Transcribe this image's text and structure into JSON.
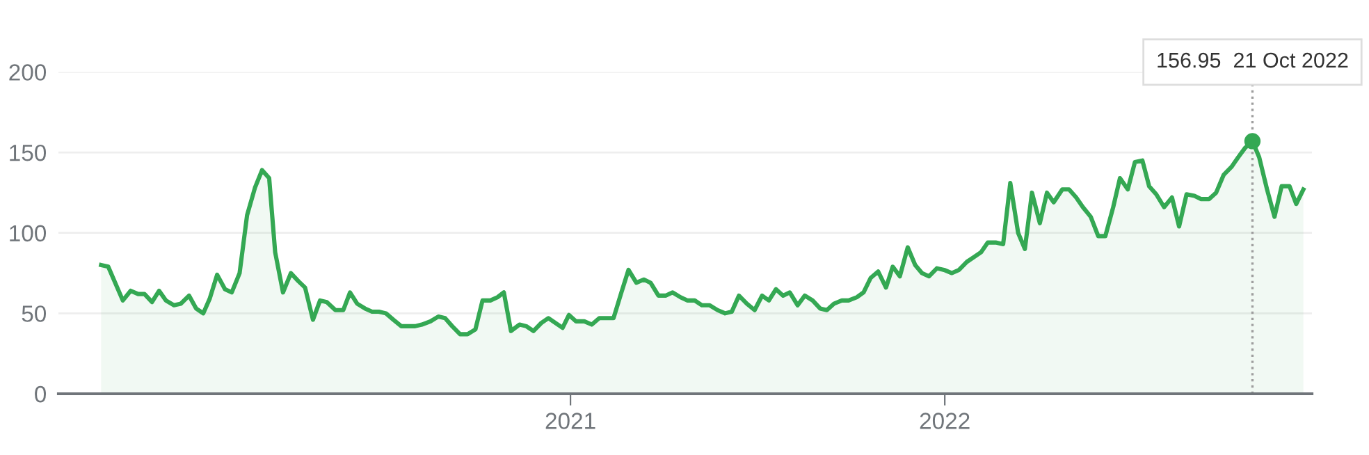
{
  "chart_data": {
    "type": "area",
    "xlim": [
      2019.632,
      2022.981
    ],
    "xticks": [
      2021,
      2022
    ],
    "ylim": [
      0,
      200
    ],
    "yticks": [
      0,
      50,
      100,
      150,
      200
    ],
    "grid": "y",
    "legend": false,
    "ref_lines": [
      {
        "axis": "x",
        "value": 2022.822,
        "line_style": "dotted",
        "color": "#9e9e9e"
      }
    ],
    "annotations": [
      "156.95  21 Oct 2022"
    ],
    "series": [
      {
        "color": "#34a853",
        "x": [
          2019.746,
          2019.765,
          2019.804,
          2019.825,
          2019.845,
          2019.862,
          2019.882,
          2019.901,
          2019.919,
          2019.941,
          2019.959,
          2019.981,
          2020.0,
          2020.019,
          2020.036,
          2020.056,
          2020.077,
          2020.095,
          2020.116,
          2020.136,
          2020.157,
          2020.176,
          2020.195,
          2020.211,
          2020.232,
          2020.253,
          2020.273,
          2020.291,
          2020.312,
          2020.331,
          2020.349,
          2020.372,
          2020.393,
          2020.411,
          2020.43,
          2020.451,
          2020.47,
          2020.488,
          2020.507,
          2020.527,
          2020.548,
          2020.566,
          2020.585,
          2020.603,
          2020.626,
          2020.647,
          2020.665,
          2020.684,
          2020.705,
          2020.725,
          2020.746,
          2020.765,
          2020.786,
          2020.805,
          2020.822,
          2020.841,
          2020.864,
          2020.882,
          2020.901,
          2020.922,
          2020.941,
          2020.96,
          2020.979,
          2020.996,
          2021.015,
          2021.037,
          2021.057,
          2021.077,
          2021.097,
          2021.115,
          2021.136,
          2021.155,
          2021.176,
          2021.196,
          2021.214,
          2021.235,
          2021.254,
          2021.273,
          2021.294,
          2021.312,
          2021.332,
          2021.351,
          2021.372,
          2021.393,
          2021.413,
          2021.431,
          2021.45,
          2021.471,
          2021.492,
          2021.512,
          2021.53,
          2021.549,
          2021.568,
          2021.586,
          2021.607,
          2021.626,
          2021.647,
          2021.667,
          2021.685,
          2021.704,
          2021.725,
          2021.743,
          2021.765,
          2021.783,
          2021.802,
          2021.822,
          2021.843,
          2021.861,
          2021.88,
          2021.901,
          2021.921,
          2021.939,
          2021.958,
          2021.979,
          2021.998,
          2022.019,
          2022.038,
          2022.059,
          2022.078,
          2022.097,
          2022.115,
          2022.136,
          2022.156,
          2022.175,
          2022.196,
          2022.214,
          2022.233,
          2022.254,
          2022.273,
          2022.291,
          2022.314,
          2022.332,
          2022.351,
          2022.369,
          2022.39,
          2022.41,
          2022.429,
          2022.45,
          2022.468,
          2022.489,
          2022.508,
          2022.528,
          2022.546,
          2022.565,
          2022.586,
          2022.607,
          2022.626,
          2022.646,
          2022.667,
          2022.685,
          2022.706,
          2022.725,
          2022.745,
          2022.766,
          2022.784,
          2022.803,
          2022.822,
          2022.84,
          2022.861,
          2022.881,
          2022.9,
          2022.921,
          2022.939,
          2022.958
        ],
        "values": [
          80,
          79,
          58,
          64,
          62,
          62,
          57,
          64,
          58,
          55,
          56,
          61,
          53,
          50,
          59,
          74,
          65,
          63,
          75,
          111,
          128,
          139,
          134,
          88,
          63,
          75,
          70,
          66,
          46,
          58,
          57,
          52,
          52,
          63,
          56,
          53,
          51,
          51,
          50,
          46,
          42,
          42,
          42,
          43,
          45,
          48,
          47,
          42,
          37,
          37,
          40,
          58,
          58,
          60,
          63,
          39,
          43,
          42,
          39,
          44,
          47,
          44,
          41,
          49,
          45,
          45,
          43,
          47,
          47,
          47,
          63,
          77,
          69,
          71,
          69,
          61,
          61,
          63,
          60,
          58,
          58,
          55,
          55,
          52,
          50,
          51,
          61,
          56,
          52,
          61,
          58,
          65,
          61,
          63,
          55,
          61,
          58,
          53,
          52,
          56,
          58,
          58,
          60,
          63,
          72,
          76,
          66,
          79,
          73,
          91,
          80,
          75,
          73,
          78,
          77,
          75,
          77,
          82,
          85,
          88,
          94,
          94,
          93,
          131,
          100,
          90,
          125,
          106,
          125,
          119,
          127,
          127,
          122,
          116,
          110,
          98,
          98,
          116,
          134,
          127,
          144,
          145,
          129,
          124,
          116,
          122,
          104,
          124,
          123,
          121,
          121,
          125,
          136,
          141,
          147,
          153,
          157,
          147,
          127,
          110,
          129,
          129,
          118,
          127
        ]
      },
      {
        "type": "scatter",
        "marker": "circle",
        "color": "#34a853",
        "x": [
          2022.822
        ],
        "values": [
          157
        ]
      }
    ]
  }
}
